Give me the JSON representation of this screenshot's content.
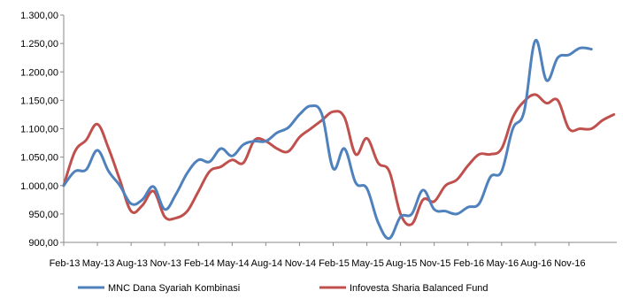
{
  "chart_data": {
    "type": "line",
    "title": "",
    "xlabel": "",
    "ylabel": "",
    "ylim": [
      900,
      1300
    ],
    "yticks": [
      900,
      950,
      1000,
      1050,
      1100,
      1150,
      1200,
      1250,
      1300
    ],
    "ytick_labels": [
      "900,00",
      "950,00",
      "1.000,00",
      "1.050,00",
      "1.100,00",
      "1.150,00",
      "1.200,00",
      "1.250,00",
      "1.300,00"
    ],
    "x_tick_labels": [
      "Feb-13",
      "May-13",
      "Aug-13",
      "Nov-13",
      "Feb-14",
      "May-14",
      "Aug-14",
      "Nov-14",
      "Feb-15",
      "May-15",
      "Aug-15",
      "Nov-15",
      "Feb-16",
      "May-16",
      "Aug-16",
      "Nov-16"
    ],
    "x_start": "2013-02",
    "grid": false,
    "legend_position": "bottom",
    "series": [
      {
        "name": "MNC Dana Syariah Kombinasi",
        "color": "#4F81BD",
        "values": [
          1000,
          1025,
          1028,
          1062,
          1025,
          1000,
          968,
          975,
          998,
          958,
          985,
          1022,
          1045,
          1042,
          1065,
          1052,
          1072,
          1078,
          1078,
          1093,
          1102,
          1125,
          1140,
          1125,
          1030,
          1065,
          1005,
          995,
          935,
          907,
          945,
          950,
          992,
          958,
          955,
          950,
          962,
          968,
          1015,
          1025,
          1100,
          1130,
          1255,
          1185,
          1225,
          1230,
          1242,
          1240
        ]
      },
      {
        "name": "Infovesta Sharia Balanced Fund",
        "color": "#C0504D",
        "values": [
          1000,
          1060,
          1080,
          1108,
          1065,
          1010,
          955,
          965,
          990,
          945,
          943,
          955,
          990,
          1025,
          1033,
          1045,
          1040,
          1080,
          1078,
          1065,
          1060,
          1085,
          1100,
          1115,
          1130,
          1120,
          1055,
          1083,
          1040,
          1025,
          950,
          932,
          975,
          972,
          1000,
          1010,
          1035,
          1055,
          1055,
          1065,
          1120,
          1148,
          1160,
          1145,
          1150,
          1100,
          1100,
          1100,
          1115,
          1125
        ]
      }
    ]
  }
}
